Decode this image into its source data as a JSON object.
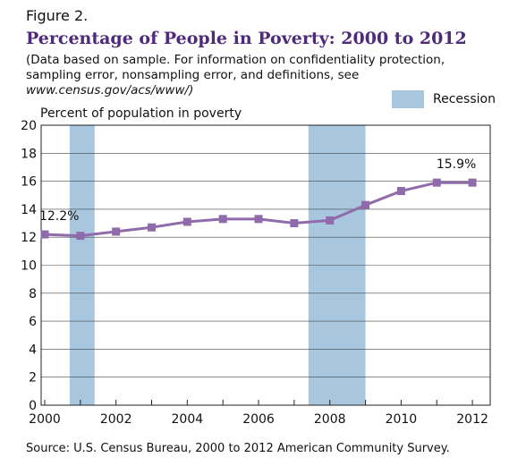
{
  "figure_label": "Figure 2.",
  "title": "Percentage of People in Poverty: 2000 to 2012",
  "note_text": "(Data based on sample. For information on confidentiality protection, sampling error, nonsampling error, and definitions, see",
  "note_url": "www.census.gov/acs/www/)",
  "legend": {
    "label": "Recession",
    "color": "#a8c7df"
  },
  "source": "Source: U.S. Census Bureau, 2000 to 2012 American Community Survey.",
  "colors": {
    "line": "#8f6bab",
    "recession": "#a8c7df",
    "grid": "#444444"
  },
  "chart_data": {
    "type": "line",
    "ylabel": "Percent of population in poverty",
    "xlabel": "",
    "x": [
      2000,
      2001,
      2002,
      2003,
      2004,
      2005,
      2006,
      2007,
      2008,
      2009,
      2010,
      2011,
      2012
    ],
    "series": [
      {
        "values": [
          12.2,
          12.1,
          12.4,
          12.7,
          13.1,
          13.3,
          13.3,
          13.0,
          13.2,
          14.3,
          15.3,
          15.9,
          15.9
        ]
      }
    ],
    "xticks": [
      "2000",
      "2002",
      "2004",
      "2006",
      "2008",
      "2010",
      "2012"
    ],
    "yticks": [
      "0",
      "2",
      "4",
      "6",
      "8",
      "10",
      "12",
      "14",
      "16",
      "18",
      "20"
    ],
    "xlim": [
      1999.9,
      2012.5
    ],
    "ylim": [
      0,
      20
    ],
    "recessions": [
      [
        2000.7,
        2001.4
      ],
      [
        2007.4,
        2009.0
      ]
    ],
    "annotations": [
      {
        "text": "12.2%",
        "x": 2000,
        "y": 12.2
      },
      {
        "text": "15.9%",
        "x": 2012,
        "y": 15.9
      }
    ],
    "grid": true
  }
}
